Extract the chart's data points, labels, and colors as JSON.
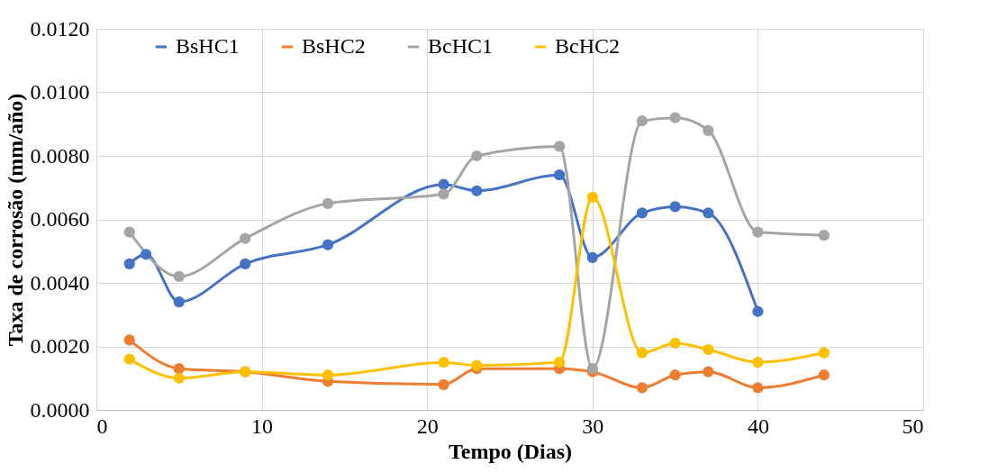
{
  "chart_data": {
    "type": "line",
    "xlabel": "Tempo (Dias)",
    "ylabel": "Taxa de corrosão (mm/año)",
    "xlim": [
      0,
      50
    ],
    "xticks": [
      0,
      10,
      20,
      30,
      40,
      50
    ],
    "ylim": [
      0,
      0.012
    ],
    "yticks": [
      {
        "value": 0,
        "label": "0.0000"
      },
      {
        "value": 0.002,
        "label": "0.0020"
      },
      {
        "value": 0.004,
        "label": "0.0040"
      },
      {
        "value": 0.006,
        "label": "0.0060"
      },
      {
        "value": 0.008,
        "label": "0.0080"
      },
      {
        "value": 0.01,
        "label": "0.0100"
      },
      {
        "value": 0.012,
        "label": "0.0120"
      }
    ],
    "grid": true,
    "legend": "top",
    "marker": "circle",
    "line_style": "solid",
    "series": [
      {
        "name": "BsHC1",
        "color": "#4472c4",
        "x": [
          2,
          3,
          5,
          9,
          14,
          21,
          23,
          28,
          30,
          33,
          35,
          37,
          40
        ],
        "values": [
          0.0046,
          0.0049,
          0.0034,
          0.0046,
          0.0052,
          0.0071,
          0.0069,
          0.0074,
          0.0048,
          0.0062,
          0.0064,
          0.0062,
          0.0031
        ]
      },
      {
        "name": "BsHC2",
        "color": "#ed7d31",
        "x": [
          2,
          5,
          9,
          14,
          21,
          23,
          28,
          30,
          33,
          35,
          37,
          40,
          44
        ],
        "values": [
          0.0022,
          0.0013,
          0.0012,
          0.0009,
          0.0008,
          0.0013,
          0.0013,
          0.0012,
          0.0007,
          0.0011,
          0.0012,
          0.0007,
          0.0011
        ]
      },
      {
        "name": "BcHC1",
        "color": "#a5a5a5",
        "x": [
          2,
          5,
          9,
          14,
          21,
          23,
          28,
          30,
          33,
          35,
          37,
          40,
          44
        ],
        "values": [
          0.0056,
          0.0042,
          0.0054,
          0.0065,
          0.0068,
          0.008,
          0.0083,
          0.0013,
          0.0091,
          0.0092,
          0.0088,
          0.0056,
          0.0055
        ]
      },
      {
        "name": "BcHC2",
        "color": "#ffc000",
        "x": [
          2,
          5,
          9,
          14,
          21,
          23,
          28,
          30,
          33,
          35,
          37,
          40,
          44
        ],
        "values": [
          0.0016,
          0.001,
          0.0012,
          0.0011,
          0.0015,
          0.0014,
          0.0015,
          0.0067,
          0.0018,
          0.0021,
          0.0019,
          0.0015,
          0.0018
        ]
      }
    ]
  }
}
